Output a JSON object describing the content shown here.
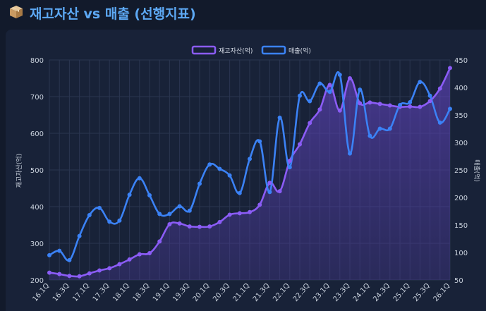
{
  "page": {
    "title": "재고자산 vs 매출 (선행지표)",
    "icon": "box-icon"
  },
  "colors": {
    "inventory": "#8b5cf6",
    "revenue": "#3b82f6",
    "background": "#121a2b",
    "panel": "#182238",
    "grid": "#2a3550"
  },
  "chart_data": {
    "type": "line",
    "legend_position": "top-center",
    "grid": true,
    "x": [
      "16.1Q",
      "16.2Q",
      "16.3Q",
      "16.4Q",
      "17.1Q",
      "17.2Q",
      "17.3Q",
      "17.4Q",
      "18.1Q",
      "18.2Q",
      "18.3Q",
      "18.4Q",
      "19.1Q",
      "19.2Q",
      "19.3Q",
      "19.4Q",
      "20.1Q",
      "20.2Q",
      "20.3Q",
      "20.4Q",
      "21.1Q",
      "21.2Q",
      "21.3Q",
      "21.4Q",
      "22.1Q",
      "22.2Q",
      "22.3Q",
      "22.4Q",
      "23.1Q",
      "23.2Q",
      "23.3Q",
      "23.4Q",
      "24.1Q",
      "24.2Q",
      "24.3Q",
      "24.4Q",
      "25.1Q",
      "25.2Q",
      "25.3Q",
      "25.4Q",
      "26.1Q"
    ],
    "x_tick_labels": [
      "16.1Q",
      "16.3Q",
      "17.1Q",
      "17.3Q",
      "18.1Q",
      "18.3Q",
      "19.1Q",
      "19.3Q",
      "20.1Q",
      "20.3Q",
      "21.1Q",
      "21.3Q",
      "22.1Q",
      "22.3Q",
      "23.1Q",
      "23.3Q",
      "24.1Q",
      "24.3Q",
      "25.1Q",
      "25.3Q",
      "26.1Q"
    ],
    "y_left": {
      "label": "재고자산(억)",
      "lim": [
        200,
        800
      ],
      "ticks": [
        200,
        300,
        400,
        500,
        600,
        700,
        800
      ]
    },
    "y_right": {
      "label": "매출(억)",
      "lim": [
        50,
        450
      ],
      "ticks": [
        50,
        100,
        150,
        200,
        250,
        300,
        350,
        400,
        450
      ]
    },
    "series": [
      {
        "name": "재고자산(억)",
        "axis": "left",
        "fill": true,
        "values": [
          220,
          216,
          211,
          210,
          218,
          226,
          232,
          243,
          256,
          270,
          273,
          305,
          352,
          354,
          346,
          345,
          346,
          358,
          378,
          382,
          385,
          405,
          465,
          442,
          525,
          570,
          628,
          665,
          732,
          662,
          750,
          682,
          684,
          680,
          676,
          672,
          673,
          672,
          688,
          722,
          778
        ]
      },
      {
        "name": "매출(억)",
        "axis": "right",
        "fill": false,
        "values": [
          95,
          103,
          86,
          130,
          168,
          181,
          156,
          158,
          205,
          235,
          204,
          170,
          170,
          184,
          176,
          225,
          260,
          252,
          240,
          208,
          270,
          302,
          210,
          345,
          255,
          385,
          375,
          407,
          392,
          423,
          280,
          396,
          312,
          325,
          325,
          368,
          373,
          410,
          385,
          336,
          361
        ]
      }
    ]
  }
}
